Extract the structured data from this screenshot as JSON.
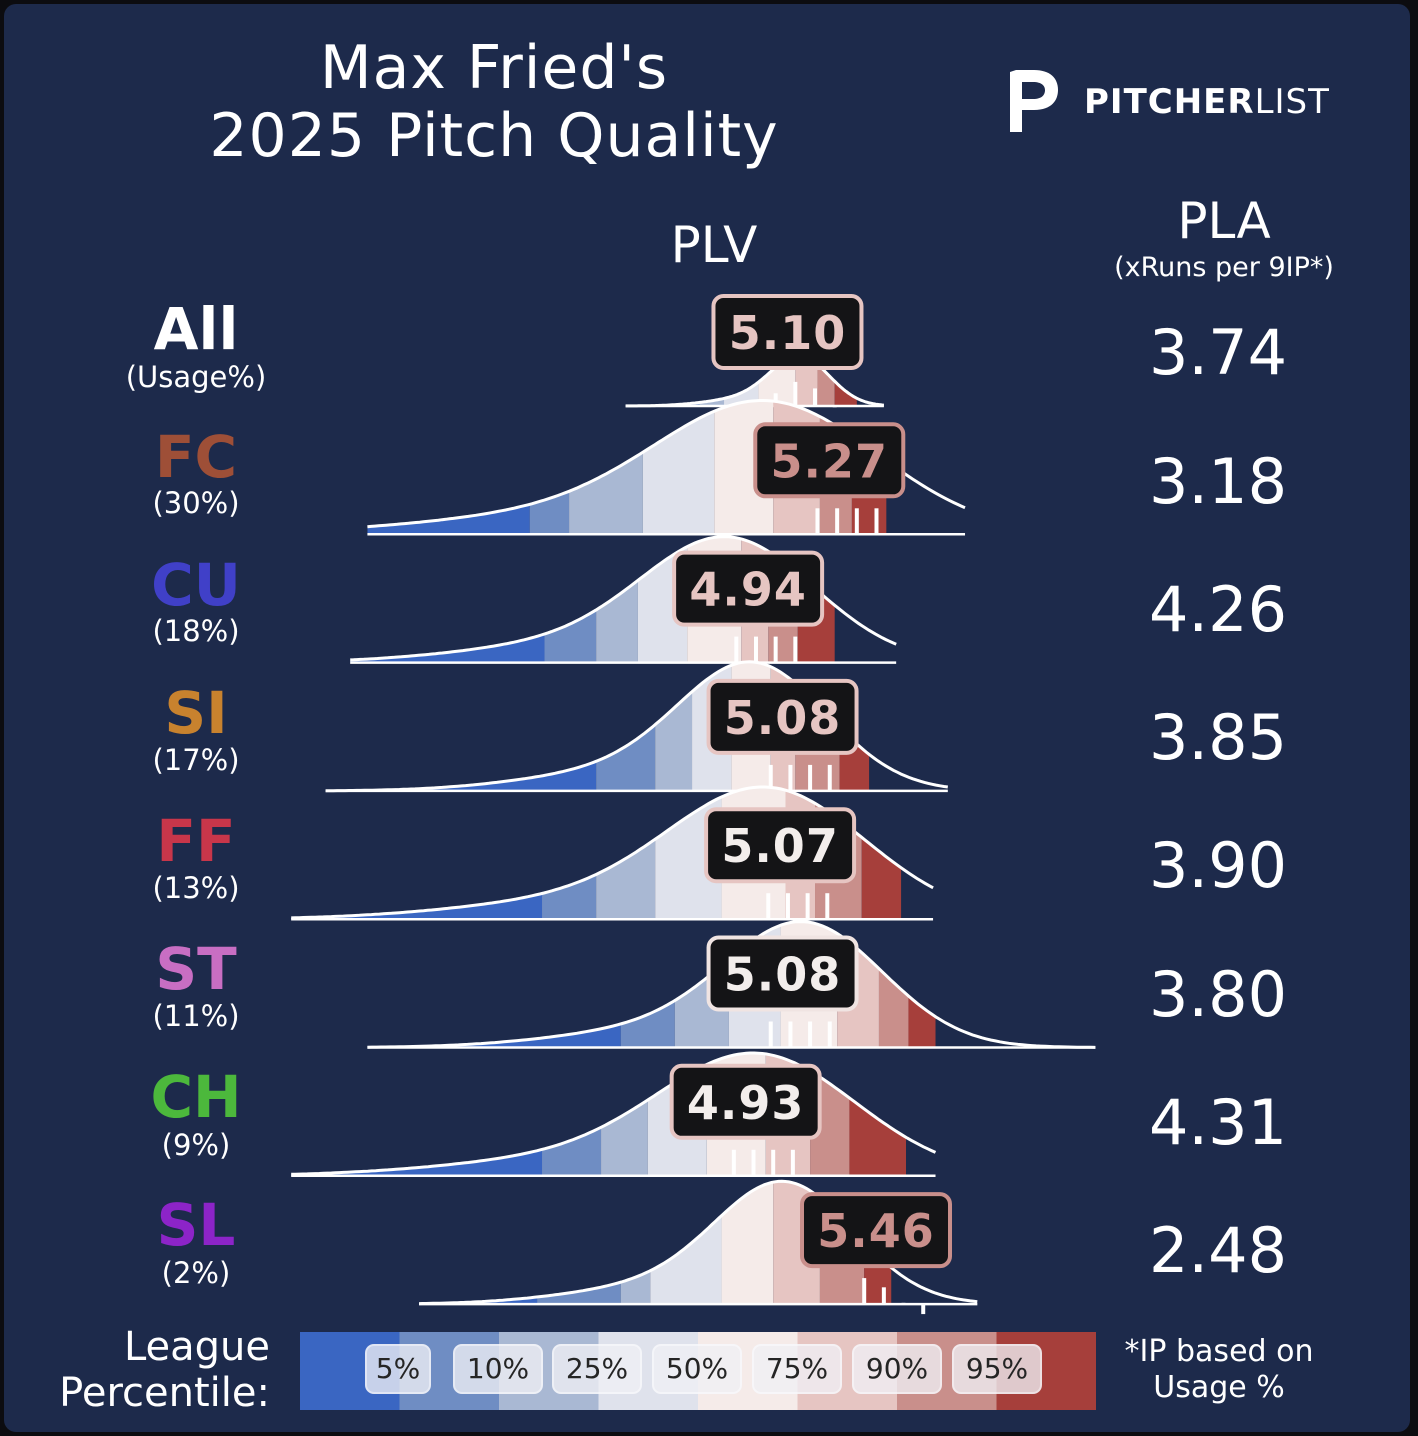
{
  "title_line1": "Max Fried's",
  "title_line2": "2025 Pitch Quality",
  "brand": {
    "bold": "PITCHER",
    "light": "LIST"
  },
  "col_plv": "PLV",
  "col_pla": "PLA",
  "col_pla_sub": "(xRuns per 9IP*)",
  "legend": {
    "title_line1": "League",
    "title_line2": "Percentile:",
    "labels": [
      "5%",
      "10%",
      "25%",
      "50%",
      "75%",
      "90%",
      "95%"
    ],
    "note_line1": "*IP based on",
    "note_line2": "Usage %"
  },
  "colors": {
    "background": "#1d2a4b",
    "percentile_bands": [
      "#3a66c2",
      "#6f8dc3",
      "#a9b8d3",
      "#dfe2ec",
      "#f5ebe9",
      "#e6c5c2",
      "#c98f8b",
      "#a63f3b"
    ]
  },
  "chart_data": {
    "type": "ridgeline",
    "title": "Max Fried's 2025 Pitch Quality",
    "metric": "PLV",
    "secondary_metric": "PLA (xRuns per 9IP*)",
    "pitches": [
      {
        "name": "All",
        "usage": "(Usage%)",
        "color": "#ffffff",
        "plv": "5.10",
        "pla": "3.74",
        "plv_value": 5.1,
        "x_range": [
          4.32,
          5.37
        ],
        "percentiles": [
          4.55,
          4.62,
          4.72,
          4.86,
          5.01,
          5.1,
          5.17,
          5.26
        ],
        "peak": 5.03,
        "spread": 0.12,
        "scale": 0.32
      },
      {
        "name": "FC",
        "usage": "(30%)",
        "color": "#9e4f37",
        "plv": "5.27",
        "pla": "3.18",
        "plv_value": 5.27,
        "x_range": [
          3.27,
          5.7
        ],
        "percentiles": [
          3.93,
          4.09,
          4.39,
          4.68,
          4.92,
          5.11,
          5.24,
          5.38
        ],
        "peak": 4.9,
        "spread": 0.45,
        "scale": 0.85
      },
      {
        "name": "CU",
        "usage": "(18%)",
        "color": "#4040c8",
        "plv": "4.94",
        "pla": "4.26",
        "plv_value": 4.94,
        "x_range": [
          3.2,
          5.42
        ],
        "percentiles": [
          3.99,
          4.2,
          4.37,
          4.57,
          4.79,
          4.9,
          5.02,
          5.17
        ],
        "peak": 4.74,
        "spread": 0.35,
        "scale": 0.8
      },
      {
        "name": "SI",
        "usage": "(17%)",
        "color": "#c8822e",
        "plv": "5.08",
        "pla": "3.85",
        "plv_value": 5.08,
        "x_range": [
          3.1,
          5.63
        ],
        "percentiles": [
          4.2,
          4.44,
          4.59,
          4.75,
          4.91,
          5.01,
          5.19,
          5.31
        ],
        "peak": 4.84,
        "spread": 0.3,
        "scale": 0.82
      },
      {
        "name": "FF",
        "usage": "(13%)",
        "color": "#c8364a",
        "plv": "5.07",
        "pla": "3.90",
        "plv_value": 5.07,
        "x_range": [
          2.96,
          5.57
        ],
        "percentiles": [
          3.98,
          4.2,
          4.44,
          4.71,
          4.97,
          5.09,
          5.28,
          5.44
        ],
        "peak": 4.9,
        "spread": 0.4,
        "scale": 0.84
      },
      {
        "name": "ST",
        "usage": "(11%)",
        "color": "#c86ec3",
        "plv": "5.08",
        "pla": "3.80",
        "plv_value": 5.08,
        "x_range": [
          3.27,
          6.23
        ],
        "percentiles": [
          4.3,
          4.52,
          4.74,
          4.95,
          5.18,
          5.35,
          5.47,
          5.58
        ],
        "peak": 5.05,
        "spread": 0.32,
        "scale": 0.8
      },
      {
        "name": "CH",
        "usage": "(9%)",
        "color": "#4cb83c",
        "plv": "4.93",
        "pla": "4.31",
        "plv_value": 4.93,
        "x_range": [
          2.96,
          5.58
        ],
        "percentiles": [
          3.98,
          4.22,
          4.41,
          4.65,
          4.89,
          5.07,
          5.23,
          5.46
        ],
        "peak": 4.86,
        "spread": 0.4,
        "scale": 0.78
      },
      {
        "name": "SL",
        "usage": "(2%)",
        "color": "#8c24c8",
        "plv": "5.46",
        "pla": "2.48",
        "plv_value": 5.46,
        "x_range": [
          3.48,
          5.75
        ],
        "percentiles": [
          3.96,
          4.3,
          4.42,
          4.71,
          4.92,
          5.11,
          5.29,
          5.4
        ],
        "peak": 4.97,
        "spread": 0.28,
        "scale": 0.78
      }
    ]
  }
}
